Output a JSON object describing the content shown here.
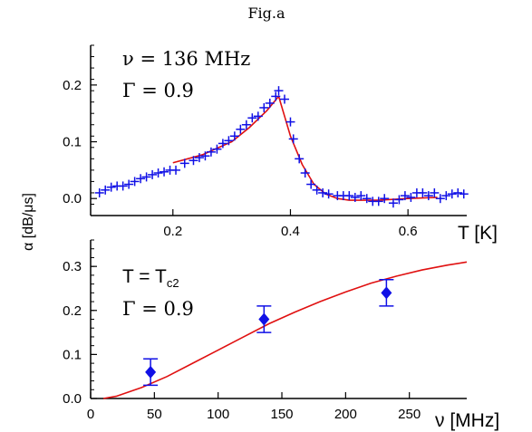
{
  "figure": {
    "title": "Fig.a",
    "y_axis_label": "α [dB/μs]",
    "colors": {
      "data": "#1010e6",
      "fit": "#e01010",
      "axis": "#000000"
    }
  },
  "chart_data": [
    {
      "type": "scatter",
      "panel": "top",
      "annotation_lines": [
        "ν = 136 MHz",
        "Γ = 0.9"
      ],
      "xlabel": "T [K]",
      "ylabel": "",
      "xlim": [
        0.06,
        0.7
      ],
      "ylim": [
        -0.03,
        0.27
      ],
      "x_ticks": [
        0.2,
        0.4,
        0.6
      ],
      "x_tick_labels": [
        "0.2",
        "0.4",
        "0.6"
      ],
      "y_ticks": [
        0.0,
        0.1,
        0.2
      ],
      "y_tick_labels": [
        "0.0",
        "0.1",
        "0.2"
      ],
      "grid": false,
      "series": [
        {
          "kind": "points",
          "marker": "plus",
          "x": [
            0.075,
            0.085,
            0.095,
            0.105,
            0.115,
            0.125,
            0.135,
            0.145,
            0.155,
            0.165,
            0.175,
            0.185,
            0.195,
            0.205,
            0.22,
            0.235,
            0.245,
            0.255,
            0.265,
            0.275,
            0.285,
            0.295,
            0.305,
            0.315,
            0.325,
            0.335,
            0.345,
            0.355,
            0.365,
            0.375,
            0.38,
            0.39,
            0.4,
            0.405,
            0.415,
            0.425,
            0.435,
            0.445,
            0.455,
            0.465,
            0.48,
            0.49,
            0.5,
            0.51,
            0.52,
            0.53,
            0.54,
            0.55,
            0.56,
            0.575,
            0.585,
            0.595,
            0.605,
            0.615,
            0.625,
            0.635,
            0.645,
            0.655,
            0.665,
            0.675,
            0.685,
            0.695
          ],
          "y": [
            0.01,
            0.015,
            0.02,
            0.022,
            0.022,
            0.025,
            0.03,
            0.035,
            0.038,
            0.042,
            0.045,
            0.047,
            0.05,
            0.05,
            0.062,
            0.067,
            0.072,
            0.075,
            0.082,
            0.087,
            0.097,
            0.102,
            0.11,
            0.122,
            0.13,
            0.142,
            0.145,
            0.16,
            0.168,
            0.18,
            0.19,
            0.175,
            0.135,
            0.105,
            0.07,
            0.045,
            0.025,
            0.015,
            0.01,
            0.008,
            0.005,
            0.005,
            0.005,
            0.002,
            0.005,
            0.0,
            -0.005,
            -0.005,
            0.0,
            -0.008,
            -0.002,
            0.005,
            0.002,
            0.01,
            0.01,
            0.005,
            0.01,
            0.0,
            0.005,
            0.008,
            0.01,
            0.008
          ]
        },
        {
          "kind": "fit",
          "x": [
            0.2,
            0.25,
            0.3,
            0.33,
            0.36,
            0.38,
            0.39,
            0.4,
            0.42,
            0.44,
            0.46,
            0.48,
            0.5,
            0.55,
            0.6,
            0.65
          ],
          "y": [
            0.063,
            0.077,
            0.1,
            0.125,
            0.155,
            0.18,
            0.145,
            0.11,
            0.06,
            0.025,
            0.008,
            0.0,
            -0.003,
            -0.003,
            0.0,
            0.002
          ]
        }
      ]
    },
    {
      "type": "scatter",
      "panel": "bottom",
      "annotation_lines": [
        "T = T",
        "c2",
        "Γ = 0.9"
      ],
      "xlabel": "ν [MHz]",
      "ylabel": "",
      "xlim": [
        0,
        295
      ],
      "ylim": [
        0,
        0.36
      ],
      "x_ticks": [
        0,
        50,
        100,
        150,
        200,
        250
      ],
      "x_tick_labels": [
        "0",
        "50",
        "100",
        "150",
        "200",
        "250"
      ],
      "y_ticks": [
        0.0,
        0.1,
        0.2,
        0.3
      ],
      "y_tick_labels": [
        "0.0",
        "0.1",
        "0.2",
        "0.3"
      ],
      "grid": false,
      "series": [
        {
          "kind": "points",
          "marker": "diamond",
          "x": [
            47,
            136,
            232
          ],
          "y": [
            0.06,
            0.18,
            0.24
          ],
          "err": [
            0.03,
            0.03,
            0.03
          ]
        },
        {
          "kind": "fit",
          "x": [
            10,
            20,
            40,
            60,
            80,
            100,
            120,
            140,
            160,
            180,
            200,
            220,
            240,
            260,
            280,
            295
          ],
          "y": [
            0.0,
            0.005,
            0.025,
            0.05,
            0.08,
            0.11,
            0.14,
            0.17,
            0.196,
            0.22,
            0.242,
            0.262,
            0.278,
            0.292,
            0.303,
            0.31
          ]
        }
      ]
    }
  ]
}
